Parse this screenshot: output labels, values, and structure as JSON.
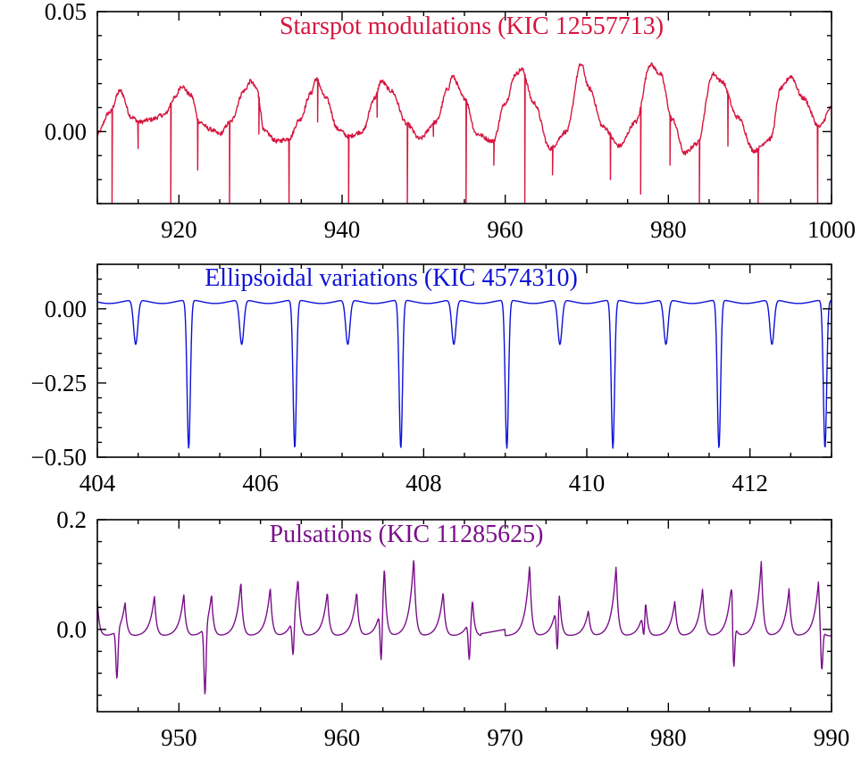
{
  "chart_data": [
    {
      "type": "line",
      "title": "Starspot modulations (KIC 12557713)",
      "color": "#d6163f",
      "xlim": [
        910,
        1000
      ],
      "ylim": [
        -0.03,
        0.05
      ],
      "xticks": [
        920,
        940,
        960,
        980,
        1000
      ],
      "xtick_labels": [
        "920",
        "940",
        "960",
        "980",
        "1000"
      ],
      "yticks": [
        0.0,
        0.05
      ],
      "ytick_labels": [
        "0.00",
        "0.05"
      ],
      "series": [
        {
          "x": [
            910,
            911.5,
            912.8,
            914.2,
            915.2,
            916.5,
            918.2,
            919.5,
            920.3,
            921.5,
            922.5,
            923.8,
            925.0,
            926.3,
            928.0,
            928.8,
            929.5,
            930.5,
            932.0,
            933.5,
            934.8,
            936.2,
            936.8,
            938.0,
            939.5,
            940.8,
            942.5,
            944.0,
            944.8,
            946.0,
            948.0,
            949.5,
            951.5,
            953.0,
            953.5,
            955.0,
            956.5,
            958.5,
            960.0,
            961.3,
            962.0,
            963.5,
            965.5,
            967.5,
            969.3,
            970.3,
            972.0,
            974.0,
            976.0,
            977.8,
            979.0,
            980.5,
            982.0,
            983.5,
            985.5,
            986.5,
            988.5,
            990.5,
            992.5,
            993.8,
            995.0,
            996.5,
            998.5,
            1000
          ],
          "y": [
            -0.001,
            0.008,
            0.017,
            0.006,
            0.004,
            0.005,
            0.007,
            0.014,
            0.019,
            0.015,
            0.004,
            0.001,
            -0.001,
            0.004,
            0.017,
            0.021,
            0.018,
            0.0,
            -0.004,
            -0.003,
            0.005,
            0.016,
            0.022,
            0.014,
            0.001,
            -0.002,
            0.0,
            0.014,
            0.021,
            0.017,
            0.003,
            -0.003,
            0.004,
            0.018,
            0.023,
            0.014,
            -0.001,
            -0.004,
            0.012,
            0.024,
            0.026,
            0.012,
            -0.007,
            0.0,
            0.028,
            0.018,
            0.002,
            -0.006,
            0.004,
            0.028,
            0.024,
            0.005,
            -0.009,
            -0.005,
            0.024,
            0.021,
            0.006,
            -0.008,
            -0.003,
            0.018,
            0.023,
            0.014,
            0.002,
            0.01
          ]
        }
      ],
      "dips": [
        [
          911.8,
          -0.03
        ],
        [
          915.0,
          -0.007
        ],
        [
          919.0,
          -0.03
        ],
        [
          922.3,
          -0.016
        ],
        [
          926.2,
          -0.03
        ],
        [
          929.8,
          -0.001
        ],
        [
          933.5,
          -0.03
        ],
        [
          937.0,
          0.004
        ],
        [
          940.8,
          -0.03
        ],
        [
          944.3,
          0.006
        ],
        [
          948.0,
          -0.03
        ],
        [
          951.2,
          -0.002
        ],
        [
          955.2,
          -0.03
        ],
        [
          958.6,
          -0.014
        ],
        [
          962.4,
          -0.03
        ],
        [
          965.8,
          -0.018
        ],
        [
          972.9,
          -0.02
        ],
        [
          976.6,
          -0.026
        ],
        [
          980.2,
          -0.014
        ],
        [
          983.8,
          -0.03
        ],
        [
          987.3,
          -0.006
        ],
        [
          991.0,
          -0.03
        ],
        [
          998.3,
          -0.03
        ]
      ]
    },
    {
      "type": "line",
      "title": "Ellipsoidal variations (KIC 4574310)",
      "color": "#0d12d6",
      "xlim": [
        404,
        413
      ],
      "ylim": [
        -0.5,
        0.15
      ],
      "xticks": [
        404,
        406,
        408,
        410,
        412
      ],
      "xtick_labels": [
        "404",
        "406",
        "408",
        "410",
        "412"
      ],
      "yticks": [
        -0.5,
        -0.25,
        0.0
      ],
      "ytick_labels": [
        "−0.50",
        "−0.25",
        "0.00"
      ],
      "period": 1.3,
      "primary_minima": [
        405.12,
        406.42,
        407.72,
        409.02,
        410.32,
        411.62,
        412.92
      ],
      "primary_depth": -0.47,
      "secondary_depth": -0.12,
      "maximum": 0.03
    },
    {
      "type": "line",
      "title": "Pulsations (KIC 11285625)",
      "color": "#7a0f8a",
      "xlim": [
        945,
        990
      ],
      "ylim": [
        -0.15,
        0.2
      ],
      "xticks": [
        950,
        960,
        970,
        980,
        990
      ],
      "xtick_labels": [
        "950",
        "960",
        "970",
        "980",
        "990"
      ],
      "yticks": [
        0.0,
        0.2
      ],
      "ytick_labels": [
        "0.0",
        "0.2"
      ],
      "peaks": [
        [
          945.0,
          0.055
        ],
        [
          946.7,
          0.05
        ],
        [
          948.5,
          0.062
        ],
        [
          950.3,
          0.065
        ],
        [
          952.0,
          0.065
        ],
        [
          953.8,
          0.088
        ],
        [
          955.6,
          0.078
        ],
        [
          957.3,
          0.095
        ],
        [
          959.1,
          0.07
        ],
        [
          960.9,
          0.07
        ],
        [
          962.6,
          0.116
        ],
        [
          964.4,
          0.134
        ],
        [
          966.2,
          0.07
        ],
        [
          968.0,
          0.055
        ],
        [
          971.5,
          0.12
        ],
        [
          973.3,
          0.092
        ],
        [
          975.1,
          0.035
        ],
        [
          976.8,
          0.118
        ],
        [
          978.6,
          0.065
        ],
        [
          980.4,
          0.053
        ],
        [
          982.1,
          0.075
        ],
        [
          983.9,
          0.095
        ],
        [
          985.7,
          0.127
        ],
        [
          987.4,
          0.075
        ],
        [
          989.2,
          0.088
        ]
      ],
      "troughs": [
        [
          946.2,
          -0.088
        ],
        [
          951.6,
          -0.125
        ],
        [
          957.0,
          -0.07
        ],
        [
          962.4,
          -0.105
        ],
        [
          967.8,
          -0.075
        ],
        [
          973.2,
          -0.095
        ],
        [
          978.5,
          -0.05
        ],
        [
          984.0,
          -0.1
        ],
        [
          989.4,
          -0.08
        ]
      ],
      "gap": [
        968.5,
        970.0
      ]
    }
  ]
}
